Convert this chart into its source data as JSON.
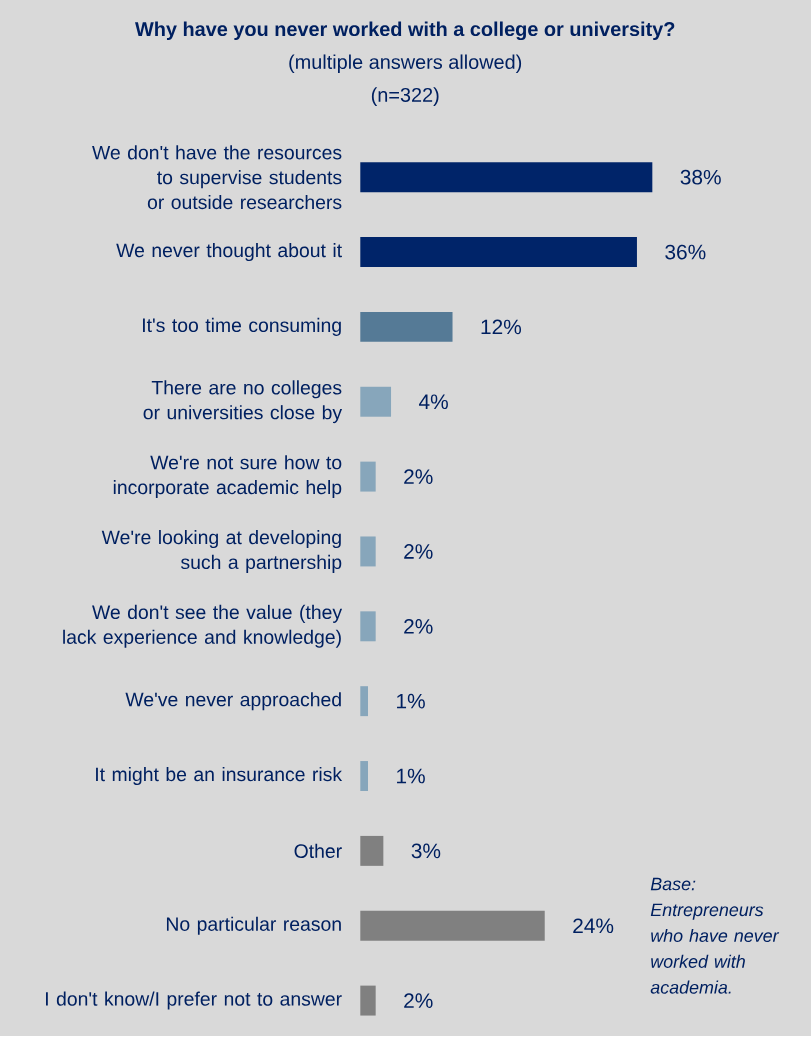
{
  "chart_data": {
    "type": "bar",
    "orientation": "horizontal",
    "title": "Why have you never worked with a college or university?",
    "subtitle": "(multiple answers allowed)",
    "annotations": [
      "(n=322)",
      "Base: Entrepreneurs who have never worked with academia."
    ],
    "categories": [
      "We don't have the resources to supervise students or outside researchers",
      "We never thought about it",
      "It's too time consuming",
      "There are no colleges or universities close by",
      "We're not sure how to incorporate academic help",
      "We're looking at developing such a partnership",
      "We don't see the value (they lack experience and knowledge)",
      "We've never approached",
      "It might be an insurance risk",
      "Other",
      "No particular reason",
      "I don't know/I prefer not to answer"
    ],
    "values": [
      38,
      36,
      12,
      4,
      2,
      2,
      2,
      1,
      1,
      3,
      24,
      2
    ],
    "value_labels": [
      "38%",
      "36%",
      "12%",
      "4%",
      "2%",
      "2%",
      "2%",
      "1%",
      "1%",
      "3%",
      "24%",
      "2%"
    ],
    "colors": [
      "#002469",
      "#002469",
      "#557a96",
      "#87a6bb",
      "#87a6bb",
      "#87a6bb",
      "#87a6bb",
      "#87a6bb",
      "#87a6bb",
      "#808080",
      "#808080",
      "#808080"
    ],
    "tick_labels": "y"
  }
}
